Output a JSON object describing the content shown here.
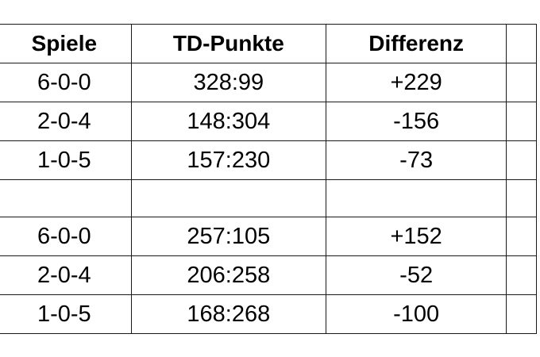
{
  "table": {
    "headers": {
      "games": "Spiele",
      "td_points": "TD-Punkte",
      "difference": "Differenz",
      "extra": ""
    },
    "rows": [
      {
        "games": "6-0-0",
        "td_points": "328:99",
        "difference": "+229",
        "extra": ""
      },
      {
        "games": "2-0-4",
        "td_points": "148:304",
        "difference": "-156",
        "extra": ""
      },
      {
        "games": "1-0-5",
        "td_points": "157:230",
        "difference": "-73",
        "extra": ""
      },
      {
        "games": "",
        "td_points": "",
        "difference": "",
        "extra": ""
      },
      {
        "games": "6-0-0",
        "td_points": "257:105",
        "difference": "+152",
        "extra": ""
      },
      {
        "games": "2-0-4",
        "td_points": "206:258",
        "difference": "-52",
        "extra": ""
      },
      {
        "games": "1-0-5",
        "td_points": "168:268",
        "difference": "-100",
        "extra": ""
      }
    ]
  }
}
